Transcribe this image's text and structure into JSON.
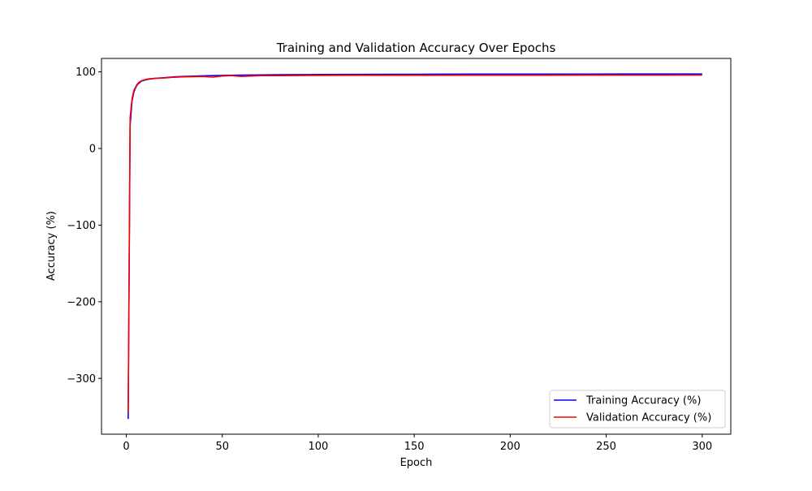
{
  "chart_data": {
    "type": "line",
    "title": "Training and Validation Accuracy Over Epochs",
    "xlabel": "Epoch",
    "ylabel": "Accuracy (%)",
    "xlim": [
      -12.9,
      314.9
    ],
    "ylim": [
      -372.8,
      117.5
    ],
    "xticks": [
      {
        "value": 0,
        "label": "0"
      },
      {
        "value": 50,
        "label": "50"
      },
      {
        "value": 100,
        "label": "100"
      },
      {
        "value": 150,
        "label": "150"
      },
      {
        "value": 200,
        "label": "200"
      },
      {
        "value": 250,
        "label": "250"
      },
      {
        "value": 300,
        "label": "300"
      }
    ],
    "yticks": [
      {
        "value": 100,
        "label": "100"
      },
      {
        "value": 0,
        "label": "0"
      },
      {
        "value": -100,
        "label": "−100"
      },
      {
        "value": -200,
        "label": "−200"
      },
      {
        "value": -300,
        "label": "−300"
      }
    ],
    "grid": false,
    "legend_position": "lower-right",
    "series": [
      {
        "name": "Training Accuracy (%)",
        "color": "#0000ff",
        "x": [
          1,
          2,
          3,
          4,
          5,
          6,
          7,
          8,
          10,
          12,
          15,
          20,
          25,
          30,
          40,
          50,
          60,
          70,
          80,
          90,
          100,
          120,
          140,
          160,
          180,
          200,
          220,
          240,
          260,
          280,
          300
        ],
        "values": [
          -353,
          30,
          62,
          74,
          80,
          84,
          86,
          88,
          89.5,
          90.5,
          91.5,
          92.5,
          93.5,
          94,
          94.8,
          95.3,
          95.7,
          96,
          96.2,
          96.4,
          96.5,
          96.7,
          96.8,
          96.9,
          97,
          97,
          97.1,
          97.1,
          97.2,
          97.2,
          97.2
        ]
      },
      {
        "name": "Validation Accuracy (%)",
        "color": "#ff0000",
        "x": [
          1,
          2,
          3,
          4,
          5,
          6,
          7,
          8,
          10,
          12,
          15,
          20,
          25,
          30,
          40,
          45,
          50,
          55,
          60,
          70,
          80,
          90,
          100,
          120,
          140,
          160,
          180,
          200,
          220,
          240,
          260,
          280,
          300
        ],
        "values": [
          -345,
          40,
          65,
          76,
          81,
          85,
          87,
          88.5,
          90,
          91,
          91.5,
          92,
          93,
          93.5,
          94,
          93,
          94.5,
          95,
          94,
          95,
          95,
          95.2,
          95.3,
          95.5,
          95.5,
          95.4,
          95.6,
          95.6,
          95.6,
          95.7,
          95.7,
          95.7,
          95.8
        ]
      }
    ]
  }
}
